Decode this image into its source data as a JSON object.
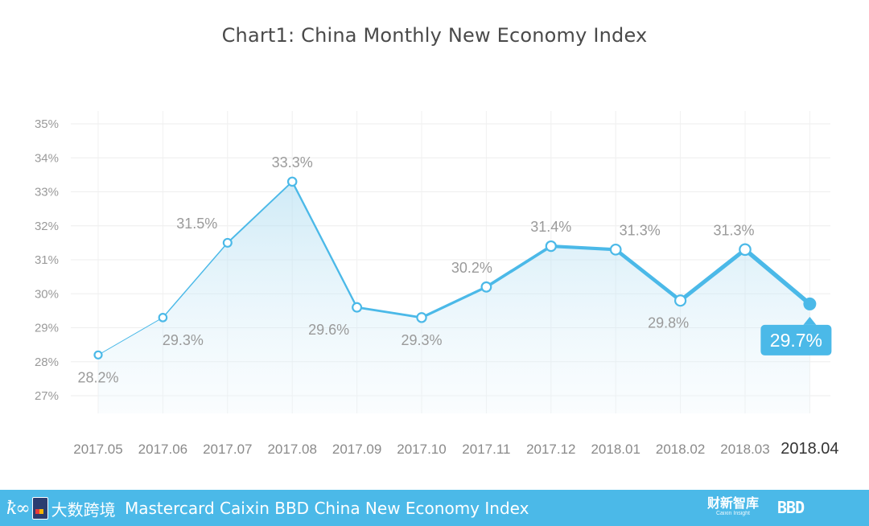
{
  "title": "Chart1: China Monthly New Economy Index",
  "chart_data": {
    "type": "line",
    "title": "Chart1: China Monthly New Economy Index",
    "xlabel": "",
    "ylabel": "",
    "ylim": [
      27,
      35
    ],
    "y_ticks": [
      "27%",
      "28%",
      "29%",
      "30%",
      "31%",
      "32%",
      "33%",
      "34%",
      "35%"
    ],
    "categories": [
      "2017.05",
      "2017.06",
      "2017.07",
      "2017.08",
      "2017.09",
      "2017.10",
      "2017.11",
      "2017.12",
      "2018.01",
      "2018.02",
      "2018.03",
      "2018.04"
    ],
    "series": [
      {
        "name": "China Monthly New Economy Index",
        "values": [
          28.2,
          29.3,
          31.5,
          33.3,
          29.6,
          29.3,
          30.2,
          31.4,
          31.3,
          29.8,
          31.3,
          29.7
        ],
        "labels": [
          "28.2%",
          "29.3%",
          "31.5%",
          "33.3%",
          "29.6%",
          "29.3%",
          "30.2%",
          "31.4%",
          "31.3%",
          "29.8%",
          "31.3%",
          "29.7%"
        ]
      }
    ],
    "highlight_label": "29.7%",
    "grid": true,
    "line_color": "#4bb9e8"
  },
  "footer": {
    "logo_mark": "ꝁ∞",
    "logo_cn": "大数跨境",
    "text": "Mastercard Caixin BBD China New Economy Index",
    "partner1": "财新智库",
    "partner1_sub": "Caixin Insight",
    "partner2": "BBD"
  }
}
